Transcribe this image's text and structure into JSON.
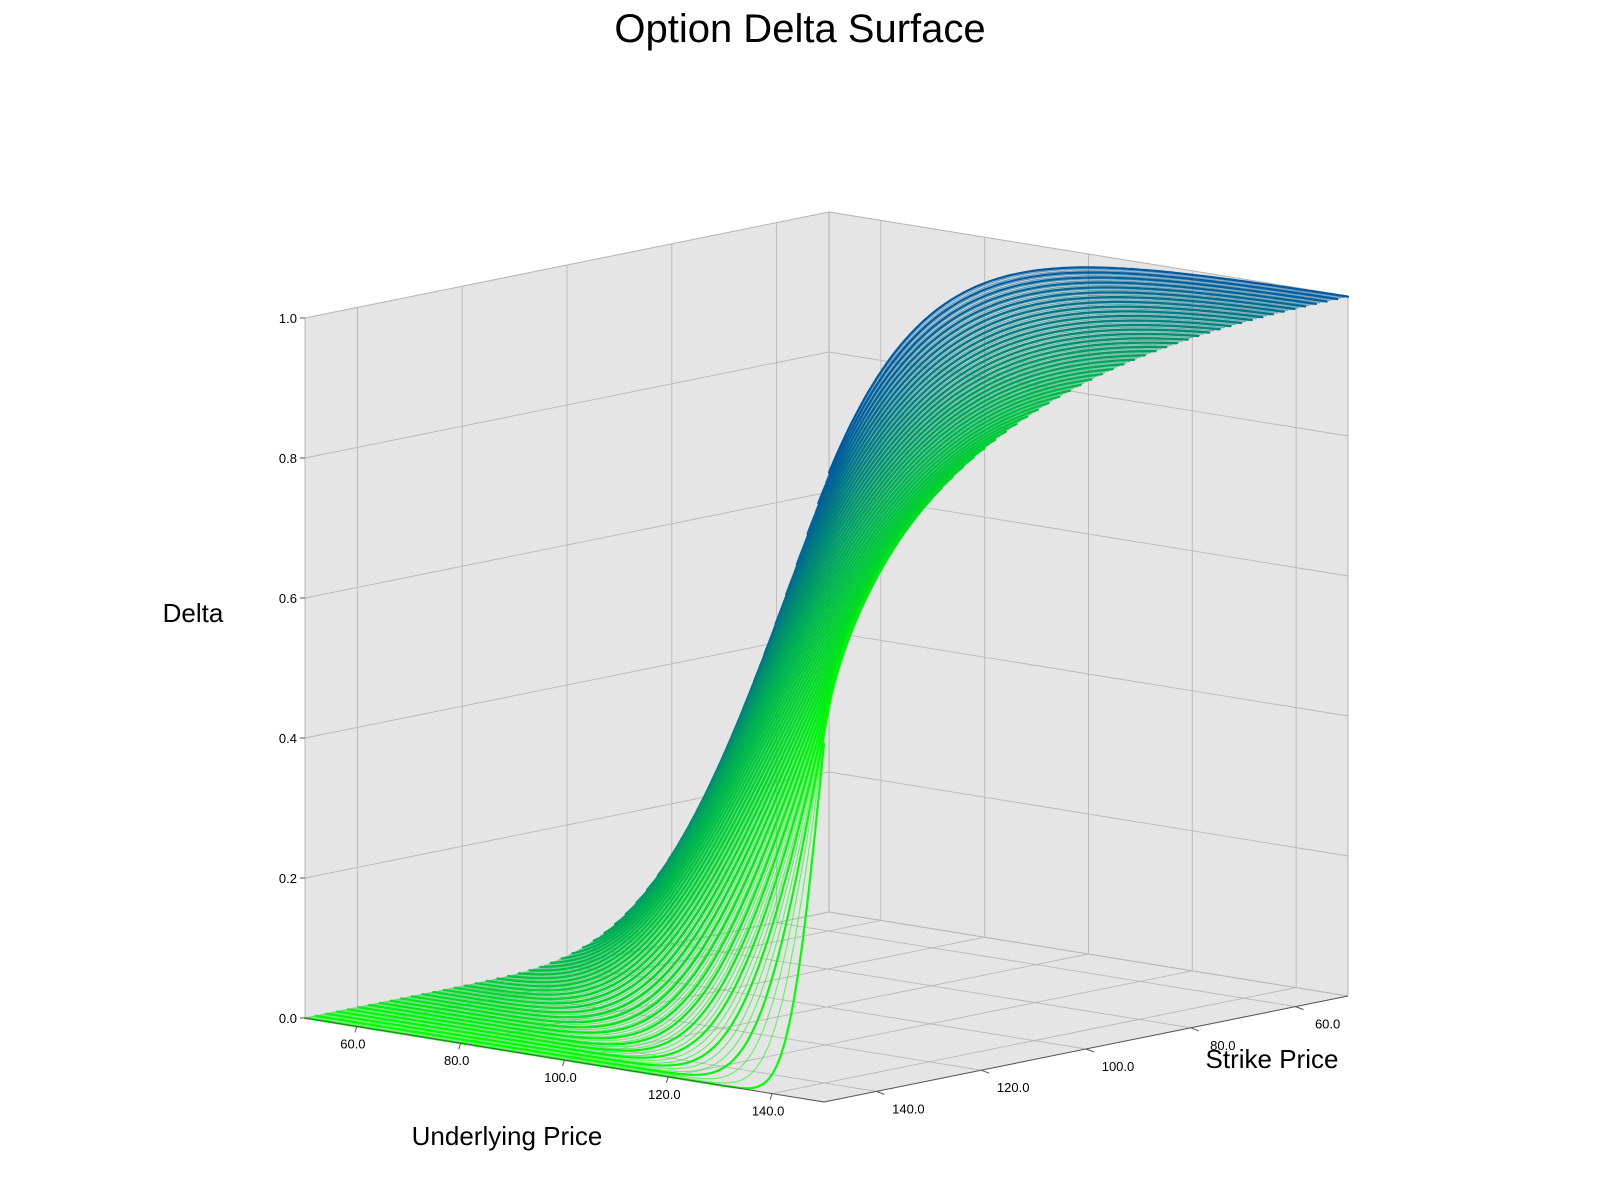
{
  "chart_data": {
    "type": "scatter3d",
    "title": "Option Delta Surface",
    "xlabel": "Underlying Price",
    "ylabel": "Strike Price",
    "zlabel": "Delta",
    "xlim": [
      50,
      150
    ],
    "ylim": [
      50,
      150
    ],
    "zlim": [
      0.0,
      1.0
    ],
    "x_ticks": [
      60.0,
      80.0,
      100.0,
      120.0,
      140.0
    ],
    "x_tick_labels": [
      "60.0",
      "80.0",
      "100.0",
      "120.0",
      "140.0"
    ],
    "y_ticks": [
      60.0,
      80.0,
      100.0,
      120.0,
      140.0
    ],
    "y_tick_labels": [
      "60.0",
      "80.0",
      "100.0",
      "120.0",
      "140.0"
    ],
    "z_ticks": [
      0.0,
      0.2,
      0.4,
      0.6,
      0.8,
      1.0
    ],
    "z_tick_labels": [
      "0.0",
      "0.2",
      "0.4",
      "0.6",
      "0.8",
      "1.0"
    ],
    "grid": true,
    "pane_color": "#e5e5e5",
    "colormap": [
      "#00ff00",
      "#00b450",
      "#005aa0"
    ],
    "surface": {
      "description_free": true,
      "function": "call_delta",
      "underlying_range": [
        50,
        150
      ],
      "strike_range": [
        50,
        150
      ],
      "color_by": "maturity",
      "maturity_curves": 50
    }
  }
}
